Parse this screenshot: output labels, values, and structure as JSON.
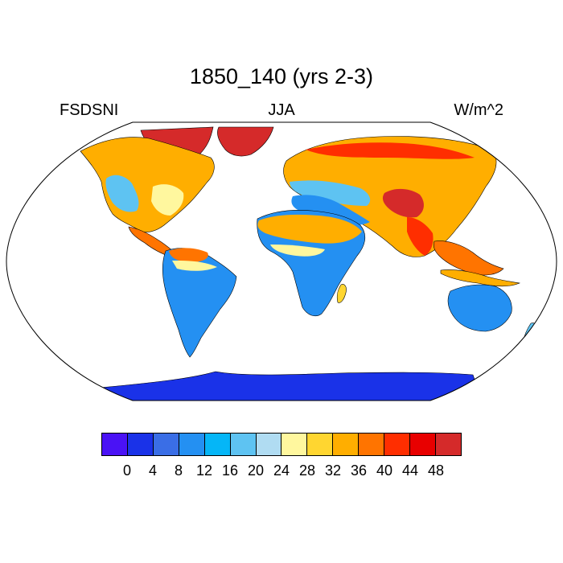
{
  "title": "1850_140 (yrs 2-3)",
  "left_label": "FSDSNI",
  "center_label": "JJA",
  "right_label": "W/m^2",
  "chart_data": {
    "type": "heatmap",
    "variable": "FSDSNI",
    "season": "JJA",
    "units": "W/m^2",
    "projection": "Robinson",
    "colorbar": {
      "levels": [
        0,
        4,
        8,
        12,
        16,
        20,
        24,
        28,
        32,
        36,
        40,
        44,
        48
      ],
      "tick_labels": [
        "0",
        "4",
        "8",
        "12",
        "16",
        "20",
        "24",
        "28",
        "32",
        "36",
        "40",
        "44",
        "48"
      ],
      "colors": [
        "#4a12f5",
        "#1a32e8",
        "#3a6ee6",
        "#2490f2",
        "#05b6f7",
        "#5ec3f2",
        "#b0dcf2",
        "#fff79e",
        "#ffd630",
        "#ffae00",
        "#ff7400",
        "#ff2e00",
        "#e80000",
        "#d52a2a"
      ]
    }
  }
}
